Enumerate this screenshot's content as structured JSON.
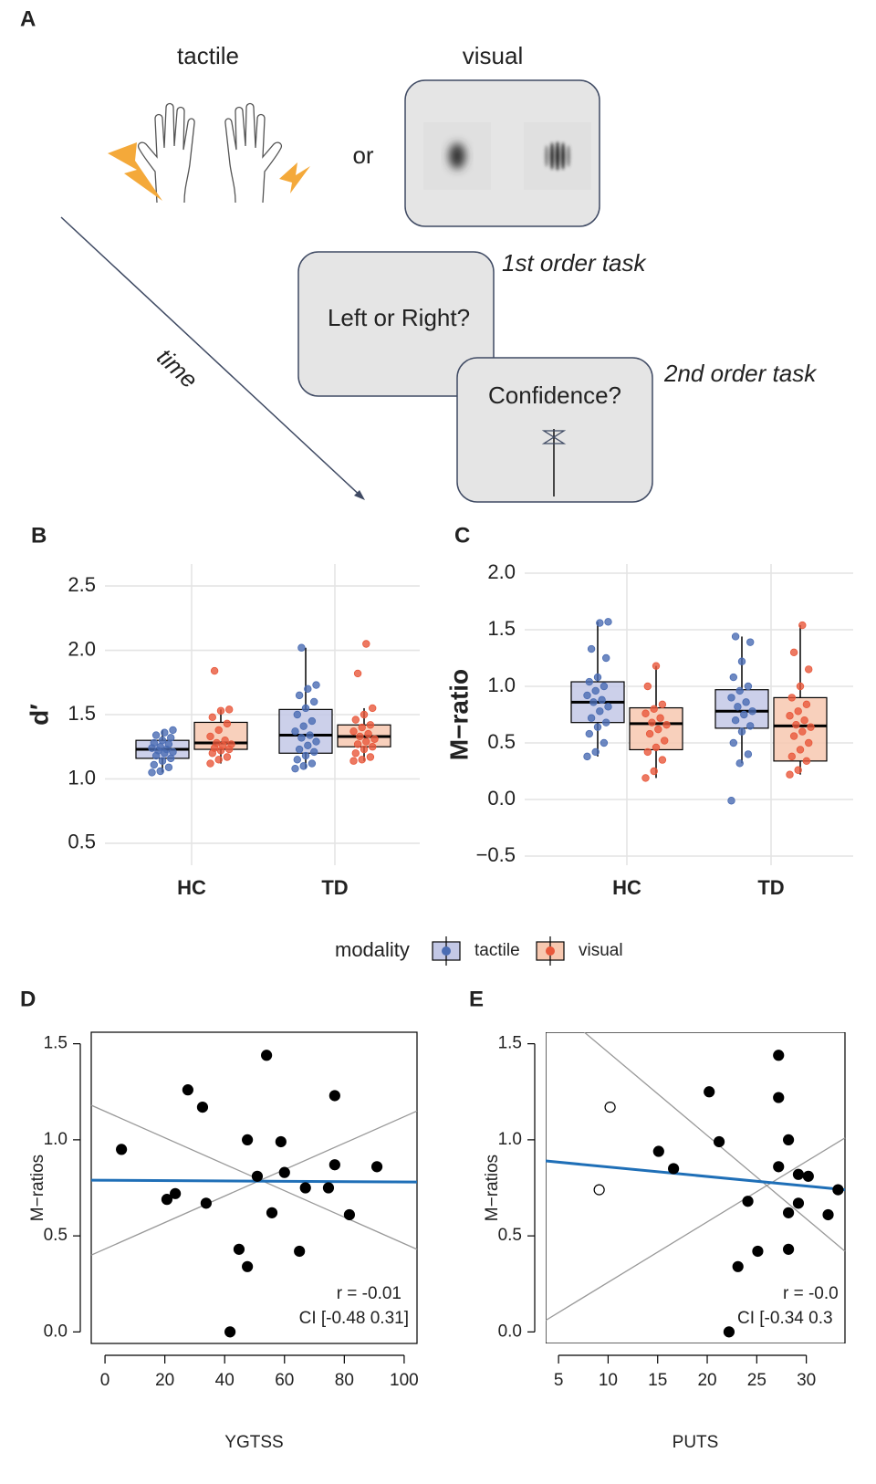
{
  "diagram": {
    "label": "A",
    "tactile": "tactile",
    "visual": "visual",
    "or": "or",
    "time": "time",
    "first_task": "1st order task",
    "first_question": "Left or Right?",
    "second_task": "2nd order task",
    "second_question": "Confidence?"
  },
  "chart_data": [
    {
      "type": "box",
      "label": "B",
      "ylabel": "d′",
      "legend_title": "modality",
      "categories": [
        "HC",
        "TD"
      ],
      "ylim": [
        0.4,
        2.6
      ],
      "yticks": [
        0.5,
        {
          "value": 1,
          "label": "1.0"
        },
        1.5,
        {
          "value": 2,
          "label": "2.0"
        },
        2.5
      ],
      "grid": true,
      "series": [
        {
          "name": "tactile",
          "color": "#4a6cb3",
          "fill": "#c3c8e6",
          "boxes": [
            {
              "whislo": 1.05,
              "q1": 1.16,
              "med": 1.23,
              "q3": 1.3,
              "whishi": 1.38,
              "points": [
                1.05,
                1.06,
                1.09,
                1.11,
                1.14,
                1.16,
                1.18,
                1.2,
                1.21,
                1.22,
                1.23,
                1.24,
                1.25,
                1.27,
                1.28,
                1.3,
                1.32,
                1.34,
                1.36,
                1.38
              ]
            },
            {
              "whislo": 1.08,
              "q1": 1.2,
              "med": 1.34,
              "q3": 1.54,
              "whishi": 2.02,
              "points": [
                1.08,
                1.1,
                1.12,
                1.15,
                1.18,
                1.21,
                1.23,
                1.26,
                1.29,
                1.32,
                1.34,
                1.37,
                1.41,
                1.45,
                1.5,
                1.55,
                1.6,
                1.65,
                1.7,
                1.73,
                2.02
              ]
            }
          ]
        },
        {
          "name": "visual",
          "color": "#e8583b",
          "fill": "#f7c8b0",
          "boxes": [
            {
              "whislo": 1.12,
              "q1": 1.23,
              "med": 1.28,
              "q3": 1.44,
              "whishi": 1.54,
              "points": [
                1.12,
                1.15,
                1.17,
                1.2,
                1.22,
                1.23,
                1.24,
                1.26,
                1.27,
                1.28,
                1.3,
                1.33,
                1.38,
                1.43,
                1.48,
                1.53,
                1.54,
                1.84
              ]
            },
            {
              "whislo": 1.14,
              "q1": 1.25,
              "med": 1.33,
              "q3": 1.42,
              "whishi": 1.55,
              "points": [
                1.14,
                1.15,
                1.17,
                1.2,
                1.23,
                1.25,
                1.27,
                1.29,
                1.31,
                1.33,
                1.35,
                1.37,
                1.4,
                1.42,
                1.46,
                1.5,
                1.55,
                1.82,
                2.05
              ]
            }
          ]
        }
      ]
    },
    {
      "type": "box",
      "label": "C",
      "ylabel": "M−ratio",
      "categories": [
        "HC",
        "TD"
      ],
      "ylim": [
        -0.5,
        2.0
      ],
      "yticks": [
        {
          "value": -0.5,
          "label": "−0.5"
        },
        {
          "value": 0,
          "label": "0.0"
        },
        0.5,
        {
          "value": 1,
          "label": "1.0"
        },
        1.5,
        {
          "value": 2,
          "label": "2.0"
        }
      ],
      "grid": true,
      "series": [
        {
          "name": "tactile",
          "color": "#4a6cb3",
          "fill": "#c3c8e6",
          "boxes": [
            {
              "whislo": 0.38,
              "q1": 0.68,
              "med": 0.86,
              "q3": 1.04,
              "whishi": 1.57,
              "points": [
                0.38,
                0.42,
                0.5,
                0.58,
                0.64,
                0.68,
                0.72,
                0.78,
                0.82,
                0.86,
                0.88,
                0.92,
                0.96,
                1.0,
                1.04,
                1.08,
                1.25,
                1.33,
                1.56,
                1.57
              ]
            },
            {
              "whislo": 0.32,
              "q1": 0.63,
              "med": 0.78,
              "q3": 0.97,
              "whishi": 1.44,
              "points": [
                -0.01,
                0.32,
                0.4,
                0.5,
                0.6,
                0.65,
                0.7,
                0.75,
                0.78,
                0.82,
                0.86,
                0.9,
                0.96,
                1.0,
                1.08,
                1.22,
                1.39,
                1.44
              ]
            }
          ]
        },
        {
          "name": "visual",
          "color": "#e8583b",
          "fill": "#f7c8b0",
          "boxes": [
            {
              "whislo": 0.19,
              "q1": 0.44,
              "med": 0.67,
              "q3": 0.81,
              "whishi": 1.18,
              "points": [
                0.19,
                0.25,
                0.35,
                0.42,
                0.46,
                0.52,
                0.58,
                0.62,
                0.66,
                0.68,
                0.72,
                0.76,
                0.8,
                0.84,
                1.0,
                1.18
              ]
            },
            {
              "whislo": 0.22,
              "q1": 0.34,
              "med": 0.65,
              "q3": 0.9,
              "whishi": 1.54,
              "points": [
                0.22,
                0.26,
                0.34,
                0.38,
                0.44,
                0.5,
                0.56,
                0.6,
                0.64,
                0.66,
                0.7,
                0.74,
                0.78,
                0.84,
                0.9,
                1.0,
                1.15,
                1.3,
                1.54
              ]
            }
          ]
        }
      ]
    },
    {
      "type": "scatter",
      "label": "D",
      "xlabel": "YGTSS",
      "ylabel": "M−ratios",
      "xlim": [
        -4.6,
        104.3
      ],
      "xticks": [
        0,
        20,
        40,
        60,
        80,
        100
      ],
      "ylim": [
        -0.06,
        1.56
      ],
      "yticks": [
        {
          "value": 0,
          "label": "0.0"
        },
        0.5,
        {
          "value": 1,
          "label": "1.0"
        },
        1.5
      ],
      "series": [
        {
          "color": "#000000",
          "filled": true,
          "x": [
            5.5,
            20.7,
            23.5,
            27.7,
            32.6,
            33.8,
            41.8,
            44.8,
            47.6,
            47.6,
            50.9,
            54,
            55.8,
            58.8,
            60,
            65,
            67,
            74.7,
            76.8,
            76.8,
            81.7,
            90.9
          ],
          "y": [
            0.95,
            0.69,
            0.72,
            1.26,
            1.17,
            0.67,
            0.0,
            0.43,
            1.0,
            0.34,
            0.81,
            1.44,
            0.62,
            0.99,
            0.83,
            0.42,
            0.75,
            0.75,
            1.23,
            0.87,
            0.61,
            0.86
          ]
        }
      ],
      "fit_line": {
        "color": "#1f6fb7",
        "x": [
          -4.6,
          104.3
        ],
        "y": [
          0.79,
          0.78
        ]
      },
      "reference_lines": [
        {
          "color": "#999999",
          "x": [
            -4.6,
            104.3
          ],
          "y": [
            1.18,
            0.43
          ]
        },
        {
          "color": "#999999",
          "x": [
            -4.6,
            104.3
          ],
          "y": [
            0.4,
            1.15
          ]
        }
      ],
      "annotations": [
        "r = -0.01",
        "CI [-0.48 0.31]"
      ]
    },
    {
      "type": "scatter",
      "label": "E",
      "xlabel": "PUTS",
      "ylabel": "M−ratios",
      "xlim": [
        3.7,
        33.9
      ],
      "xticks": [
        5,
        10,
        15,
        20,
        25,
        30
      ],
      "ylim": [
        -0.06,
        1.56
      ],
      "yticks": [
        {
          "value": 0,
          "label": "0.0"
        },
        0.5,
        {
          "value": 1,
          "label": "1.0"
        },
        1.5
      ],
      "series": [
        {
          "color": "#000000",
          "filled": true,
          "x": [
            15.1,
            16.6,
            20.2,
            21.2,
            22.2,
            23.1,
            24.1,
            25.1,
            27.2,
            27.2,
            27.2,
            28.2,
            28.2,
            28.2,
            29.2,
            29.2,
            30.2,
            32.2,
            33.2
          ],
          "y": [
            0.94,
            0.85,
            1.25,
            0.99,
            0.0,
            0.34,
            0.68,
            0.42,
            1.44,
            1.22,
            0.86,
            1.0,
            0.62,
            0.43,
            0.67,
            0.82,
            0.81,
            0.61,
            0.74
          ]
        },
        {
          "color": "#000000",
          "filled": false,
          "x": [
            10.2,
            9.1
          ],
          "y": [
            1.17,
            0.74
          ]
        }
      ],
      "fit_line": {
        "color": "#1f6fb7",
        "x": [
          3.7,
          33.9
        ],
        "y": [
          0.89,
          0.74
        ]
      },
      "reference_lines": [
        {
          "color": "#999999",
          "x": [
            7.6,
            33.9
          ],
          "y": [
            1.56,
            0.42
          ]
        },
        {
          "color": "#999999",
          "x": [
            3.7,
            33.9
          ],
          "y": [
            0.06,
            1.01
          ]
        }
      ],
      "annotations": [
        "r = -0.0",
        "CI [-0.34 0.3"
      ]
    }
  ]
}
